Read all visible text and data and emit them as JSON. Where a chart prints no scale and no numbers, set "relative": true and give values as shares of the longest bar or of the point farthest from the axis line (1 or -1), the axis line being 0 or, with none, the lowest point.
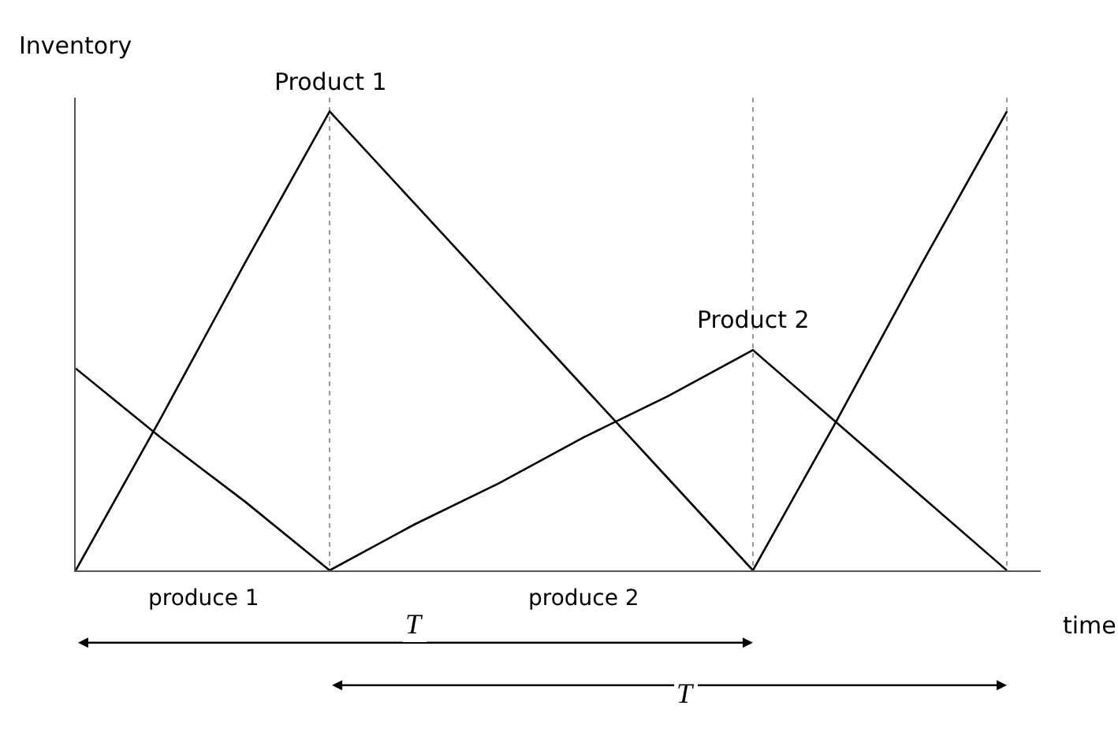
{
  "chart_data": {
    "type": "line",
    "relative": true,
    "xlabel": "time",
    "ylabel": "Inventory",
    "categories": [
      null,
      null,
      null,
      null,
      null,
      null,
      null,
      null,
      null,
      null,
      null,
      null
    ],
    "grid": "x",
    "legend": false,
    "marker": "none",
    "line_style": "solid",
    "series": [
      {
        "name": "Product 1",
        "color": "#000000",
        "values": [
          0,
          0.33,
          0.67,
          1,
          0.8,
          0.6,
          0.4,
          0.2,
          0,
          0.33,
          0.67,
          1
        ]
      },
      {
        "name": "Product 2",
        "color": "#000000",
        "values": [
          0.44,
          0.29,
          0.15,
          0,
          0.1,
          0.19,
          0.29,
          0.38,
          0.48,
          0.32,
          0.16,
          0
        ]
      }
    ],
    "annotations": [
      "produce 1",
      "produce 2",
      "T",
      "T"
    ]
  }
}
